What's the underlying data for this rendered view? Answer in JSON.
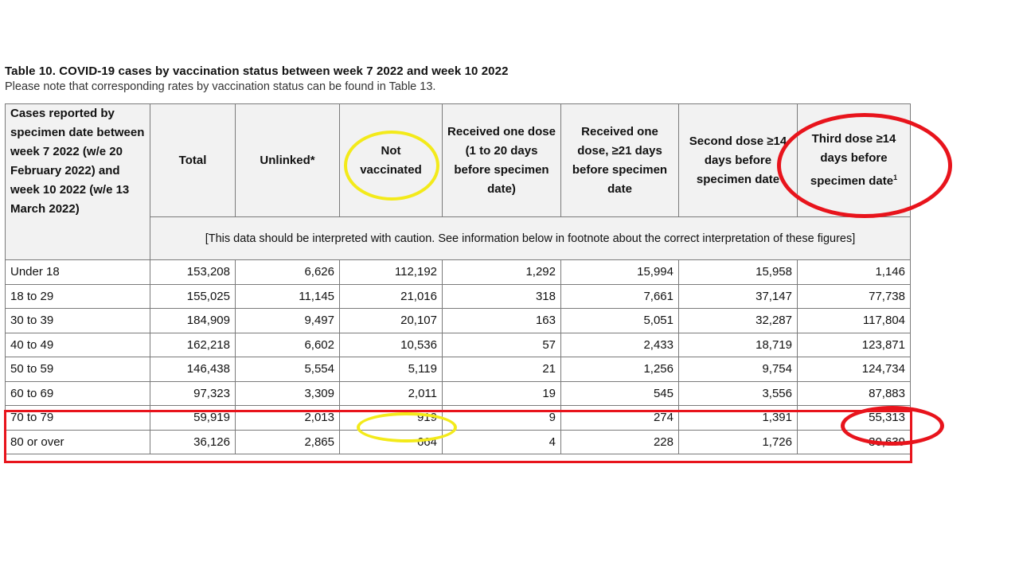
{
  "title": "Table 10. COVID-19 cases by vaccination status between week 7 2022 and week 10 2022",
  "subtitle": "Please note that corresponding rates by vaccination status can be found in Table 13.",
  "table": {
    "row_header": "Cases reported by specimen date between week 7 2022 (w/e 20 February 2022) and week 10 2022 (w/e 13 March 2022)",
    "headers": {
      "total": "Total",
      "unlinked": "Unlinked*",
      "not_vaccinated": "Not vaccinated",
      "one_dose_1_20": "Received one dose (1 to 20 days before specimen date)",
      "one_dose_21": "Received one dose, ≥21 days before specimen date",
      "second_dose": "Second dose ≥14 days before specimen date",
      "third_dose": "Third dose ≥14 days before specimen date",
      "third_dose_sup": "1"
    },
    "caution_note": "[This data should be interpreted with caution. See information below in footnote about the correct interpretation of these figures]",
    "rows": [
      {
        "age": "Under 18",
        "total": "153,208",
        "unlinked": "6,626",
        "not_vaccinated": "112,192",
        "one_dose_1_20": "1,292",
        "one_dose_21": "15,994",
        "second_dose": "15,958",
        "third_dose": "1,146"
      },
      {
        "age": "18 to 29",
        "total": "155,025",
        "unlinked": "11,145",
        "not_vaccinated": "21,016",
        "one_dose_1_20": "318",
        "one_dose_21": "7,661",
        "second_dose": "37,147",
        "third_dose": "77,738"
      },
      {
        "age": "30 to 39",
        "total": "184,909",
        "unlinked": "9,497",
        "not_vaccinated": "20,107",
        "one_dose_1_20": "163",
        "one_dose_21": "5,051",
        "second_dose": "32,287",
        "third_dose": "117,804"
      },
      {
        "age": "40 to 49",
        "total": "162,218",
        "unlinked": "6,602",
        "not_vaccinated": "10,536",
        "one_dose_1_20": "57",
        "one_dose_21": "2,433",
        "second_dose": "18,719",
        "third_dose": "123,871"
      },
      {
        "age": "50 to 59",
        "total": "146,438",
        "unlinked": "5,554",
        "not_vaccinated": "5,119",
        "one_dose_1_20": "21",
        "one_dose_21": "1,256",
        "second_dose": "9,754",
        "third_dose": "124,734"
      },
      {
        "age": "60 to 69",
        "total": "97,323",
        "unlinked": "3,309",
        "not_vaccinated": "2,011",
        "one_dose_1_20": "19",
        "one_dose_21": "545",
        "second_dose": "3,556",
        "third_dose": "87,883"
      },
      {
        "age": "70 to 79",
        "total": "59,919",
        "unlinked": "2,013",
        "not_vaccinated": "919",
        "one_dose_1_20": "9",
        "one_dose_21": "274",
        "second_dose": "1,391",
        "third_dose": "55,313"
      },
      {
        "age": "80 or over",
        "total": "36,126",
        "unlinked": "2,865",
        "not_vaccinated": "664",
        "one_dose_1_20": "4",
        "one_dose_21": "228",
        "second_dose": "1,726",
        "third_dose": "30,639"
      }
    ]
  },
  "annotation_colors": {
    "red": "#e8141c",
    "yellow": "#f3ea1a"
  }
}
